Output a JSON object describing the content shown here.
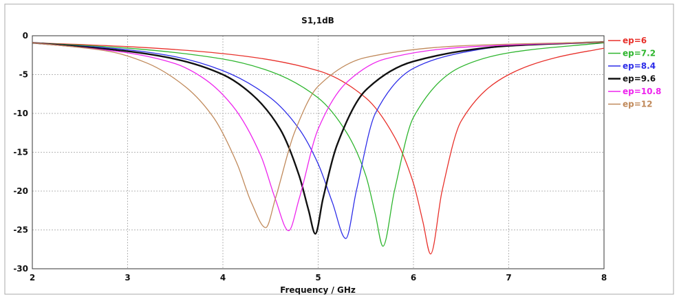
{
  "chart_data": {
    "type": "line",
    "title": "S1,1dB",
    "xlabel": "Frequency / GHz",
    "ylabel": "",
    "xlim": [
      2,
      8
    ],
    "ylim": [
      -30,
      0
    ],
    "xticks": [
      2,
      3,
      4,
      5,
      6,
      7,
      8
    ],
    "yticks": [
      0,
      -5,
      -10,
      -15,
      -20,
      -25,
      -30
    ],
    "grid": true,
    "legend_position": "right",
    "series": [
      {
        "name": "ep=6",
        "color": "#e8302a",
        "x": [
          2,
          3,
          4,
          5,
          5.5,
          5.8,
          6.0,
          6.1,
          6.18,
          6.3,
          6.5,
          7,
          7.5,
          8
        ],
        "y": [
          -0.9,
          -1.4,
          -2.3,
          -4.5,
          -8,
          -13,
          -19,
          -24,
          -28.1,
          -20,
          -11,
          -5,
          -2.8,
          -1.6
        ]
      },
      {
        "name": "ep=7.2",
        "color": "#2db52d",
        "x": [
          2,
          3,
          4,
          4.5,
          5,
          5.3,
          5.5,
          5.6,
          5.68,
          5.8,
          6,
          6.5,
          7,
          8
        ],
        "y": [
          -0.9,
          -1.6,
          -3.0,
          -4.6,
          -8,
          -12.5,
          -18,
          -23,
          -27.1,
          -20,
          -10.5,
          -4,
          -2.2,
          -0.9
        ]
      },
      {
        "name": "ep=8.4",
        "color": "#2c2ce8",
        "x": [
          2,
          3,
          3.5,
          4,
          4.5,
          4.8,
          5,
          5.15,
          5.29,
          5.4,
          5.6,
          6,
          6.5,
          7,
          8
        ],
        "y": [
          -0.9,
          -1.8,
          -2.7,
          -4.5,
          -8,
          -12,
          -16.5,
          -21.5,
          -26.1,
          -20,
          -10,
          -4.2,
          -2.2,
          -1.3,
          -0.8
        ]
      },
      {
        "name": "ep=9.6",
        "color": "#111111",
        "x": [
          2,
          3,
          3.5,
          4,
          4.3,
          4.6,
          4.8,
          4.9,
          4.97,
          5.05,
          5.2,
          5.5,
          6,
          7,
          8
        ],
        "y": [
          -0.9,
          -2.0,
          -3.0,
          -5,
          -7.5,
          -12,
          -18,
          -22.5,
          -25.5,
          -21,
          -14,
          -7,
          -3.3,
          -1.3,
          -0.8
        ]
      },
      {
        "name": "ep=10.8",
        "color": "#ee24ee",
        "x": [
          2,
          3,
          3.5,
          3.8,
          4.1,
          4.4,
          4.55,
          4.69,
          4.8,
          5,
          5.3,
          5.7,
          6.5,
          8
        ],
        "y": [
          -0.9,
          -2.2,
          -3.6,
          -5.5,
          -9,
          -15.5,
          -21,
          -25.1,
          -21,
          -12,
          -6,
          -3,
          -1.5,
          -0.8
        ]
      },
      {
        "name": "ep=12",
        "color": "#c0895a",
        "x": [
          2,
          2.8,
          3.2,
          3.6,
          3.9,
          4.15,
          4.3,
          4.45,
          4.55,
          4.75,
          5,
          5.5,
          6.5,
          8
        ],
        "y": [
          -0.9,
          -2.0,
          -3.5,
          -6.5,
          -10.5,
          -16.5,
          -21.5,
          -24.7,
          -21,
          -12.5,
          -6.5,
          -2.8,
          -1.3,
          -0.8
        ]
      }
    ]
  }
}
